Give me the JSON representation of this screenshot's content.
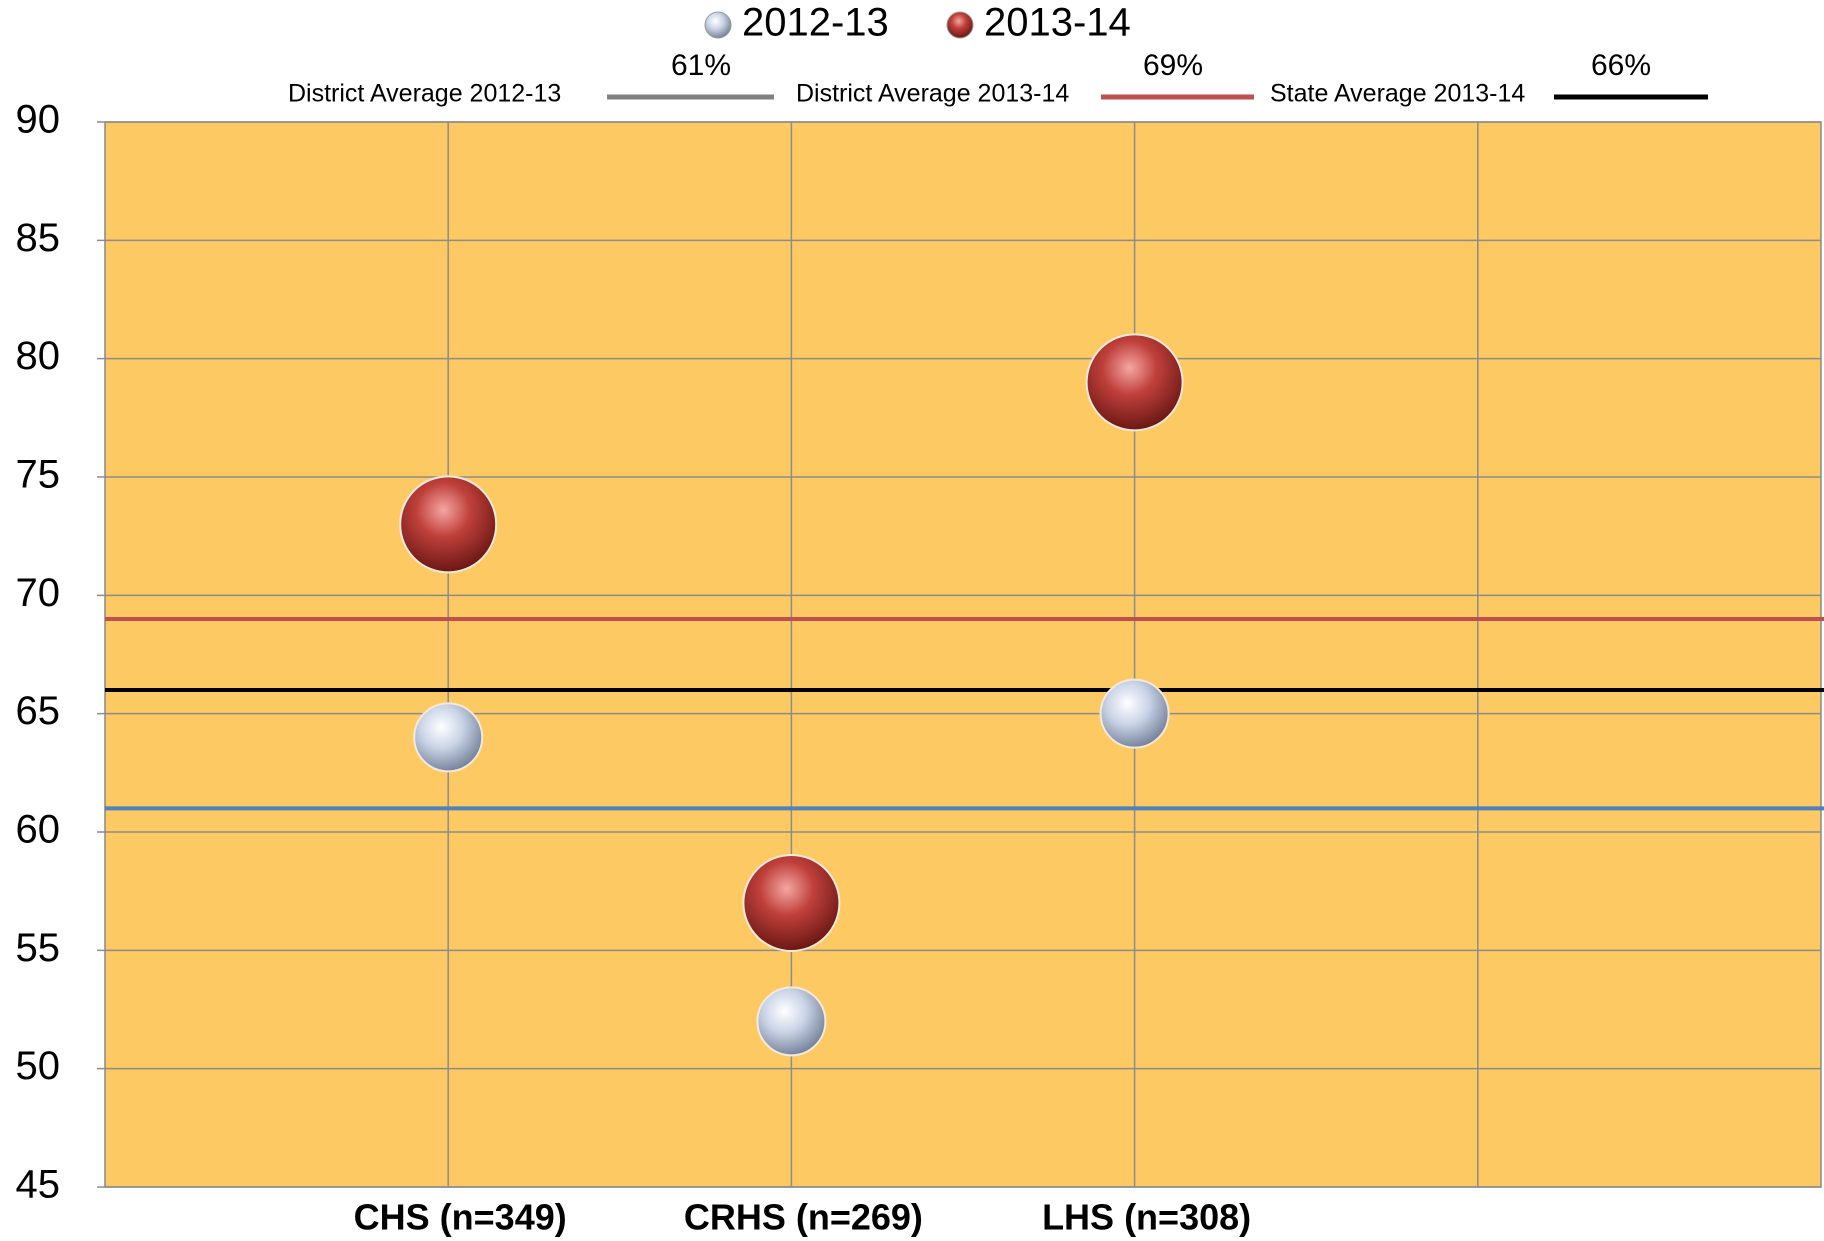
{
  "chart_data": {
    "type": "scatter",
    "categories": [
      null,
      "CHS (n=349)",
      "CRHS (n=269)",
      "LHS (n=308)",
      null,
      null
    ],
    "series": [
      {
        "name": "2012-13",
        "color": "#b8c6e0",
        "values": [
          null,
          64,
          52,
          65,
          null,
          null
        ]
      },
      {
        "name": "2013-14",
        "color": "#b0302c",
        "values": [
          null,
          73,
          57,
          79,
          null,
          null
        ]
      }
    ],
    "reference_lines": [
      {
        "name": "District Average 2012-13",
        "value": 61,
        "label": "61%",
        "color": "#4f81bd",
        "legend_color": "#808080"
      },
      {
        "name": "District Average 2013-14",
        "value": 69,
        "label": "69%",
        "color": "#c0504d",
        "legend_color": "#c0504d"
      },
      {
        "name": "State Average 2013-14",
        "value": 66,
        "label": "66%",
        "color": "#000000",
        "legend_color": "#000000"
      }
    ],
    "ylim": [
      45,
      90
    ],
    "yticks": [
      45,
      50,
      55,
      60,
      65,
      70,
      75,
      80,
      85,
      90
    ],
    "grid": true,
    "plot_background": "#fcc962"
  }
}
